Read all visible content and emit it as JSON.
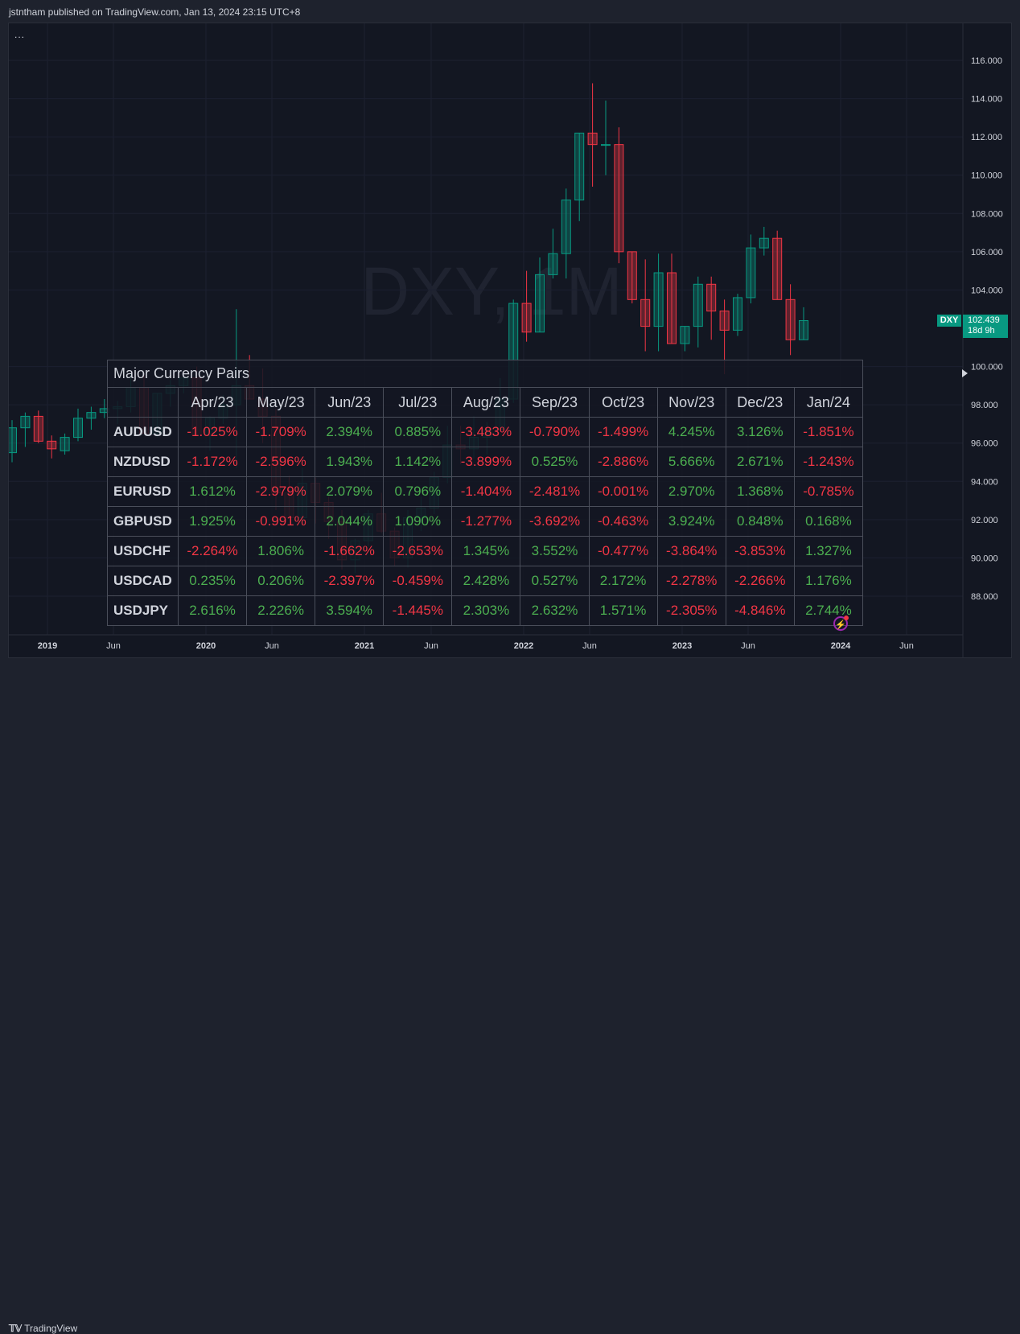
{
  "header": {
    "text": "jstntham published on TradingView.com, Jan 13, 2024 23:15 UTC+8"
  },
  "chart": {
    "watermark": "DXY, 1M",
    "menu": "...",
    "symbol_tag": "DXY",
    "last_price": "102.439",
    "countdown": "18d 9h",
    "price_axis": [
      "116.000",
      "114.000",
      "112.000",
      "110.000",
      "108.000",
      "106.000",
      "104.000",
      "100.000",
      "98.000",
      "96.000",
      "94.000",
      "92.000",
      "90.000",
      "88.000"
    ],
    "time_axis": [
      "2019",
      "Jun",
      "2020",
      "Jun",
      "2021",
      "Jun",
      "2022",
      "Jun",
      "2023",
      "Jun",
      "2024",
      "Jun"
    ]
  },
  "table": {
    "title": "Major Currency Pairs",
    "months": [
      "Apr/23",
      "May/23",
      "Jun/23",
      "Jul/23",
      "Aug/23",
      "Sep/23",
      "Oct/23",
      "Nov/23",
      "Dec/23",
      "Jan/24"
    ],
    "rows": [
      {
        "pair": "AUDUSD",
        "values": [
          "-1.025%",
          "-1.709%",
          "2.394%",
          "0.885%",
          "-3.483%",
          "-0.790%",
          "-1.499%",
          "4.245%",
          "3.126%",
          "-1.851%"
        ]
      },
      {
        "pair": "NZDUSD",
        "values": [
          "-1.172%",
          "-2.596%",
          "1.943%",
          "1.142%",
          "-3.899%",
          "0.525%",
          "-2.886%",
          "5.666%",
          "2.671%",
          "-1.243%"
        ]
      },
      {
        "pair": "EURUSD",
        "values": [
          "1.612%",
          "-2.979%",
          "2.079%",
          "0.796%",
          "-1.404%",
          "-2.481%",
          "-0.001%",
          "2.970%",
          "1.368%",
          "-0.785%"
        ]
      },
      {
        "pair": "GBPUSD",
        "values": [
          "1.925%",
          "-0.991%",
          "2.044%",
          "1.090%",
          "-1.277%",
          "-3.692%",
          "-0.463%",
          "3.924%",
          "0.848%",
          "0.168%"
        ]
      },
      {
        "pair": "USDCHF",
        "values": [
          "-2.264%",
          "1.806%",
          "-1.662%",
          "-2.653%",
          "1.345%",
          "3.552%",
          "-0.477%",
          "-3.864%",
          "-3.853%",
          "1.327%"
        ]
      },
      {
        "pair": "USDCAD",
        "values": [
          "0.235%",
          "0.206%",
          "-2.397%",
          "-0.459%",
          "2.428%",
          "0.527%",
          "2.172%",
          "-2.278%",
          "-2.266%",
          "1.176%"
        ]
      },
      {
        "pair": "USDJPY",
        "values": [
          "2.616%",
          "2.226%",
          "3.594%",
          "-1.445%",
          "2.303%",
          "2.632%",
          "1.571%",
          "-2.305%",
          "-4.846%",
          "2.744%"
        ]
      }
    ]
  },
  "footer": {
    "brand": "TradingView"
  },
  "colors": {
    "up": "#089981",
    "down": "#f23645",
    "pos_text": "#4caf50",
    "neg_text": "#f23645",
    "background": "#131722"
  }
}
